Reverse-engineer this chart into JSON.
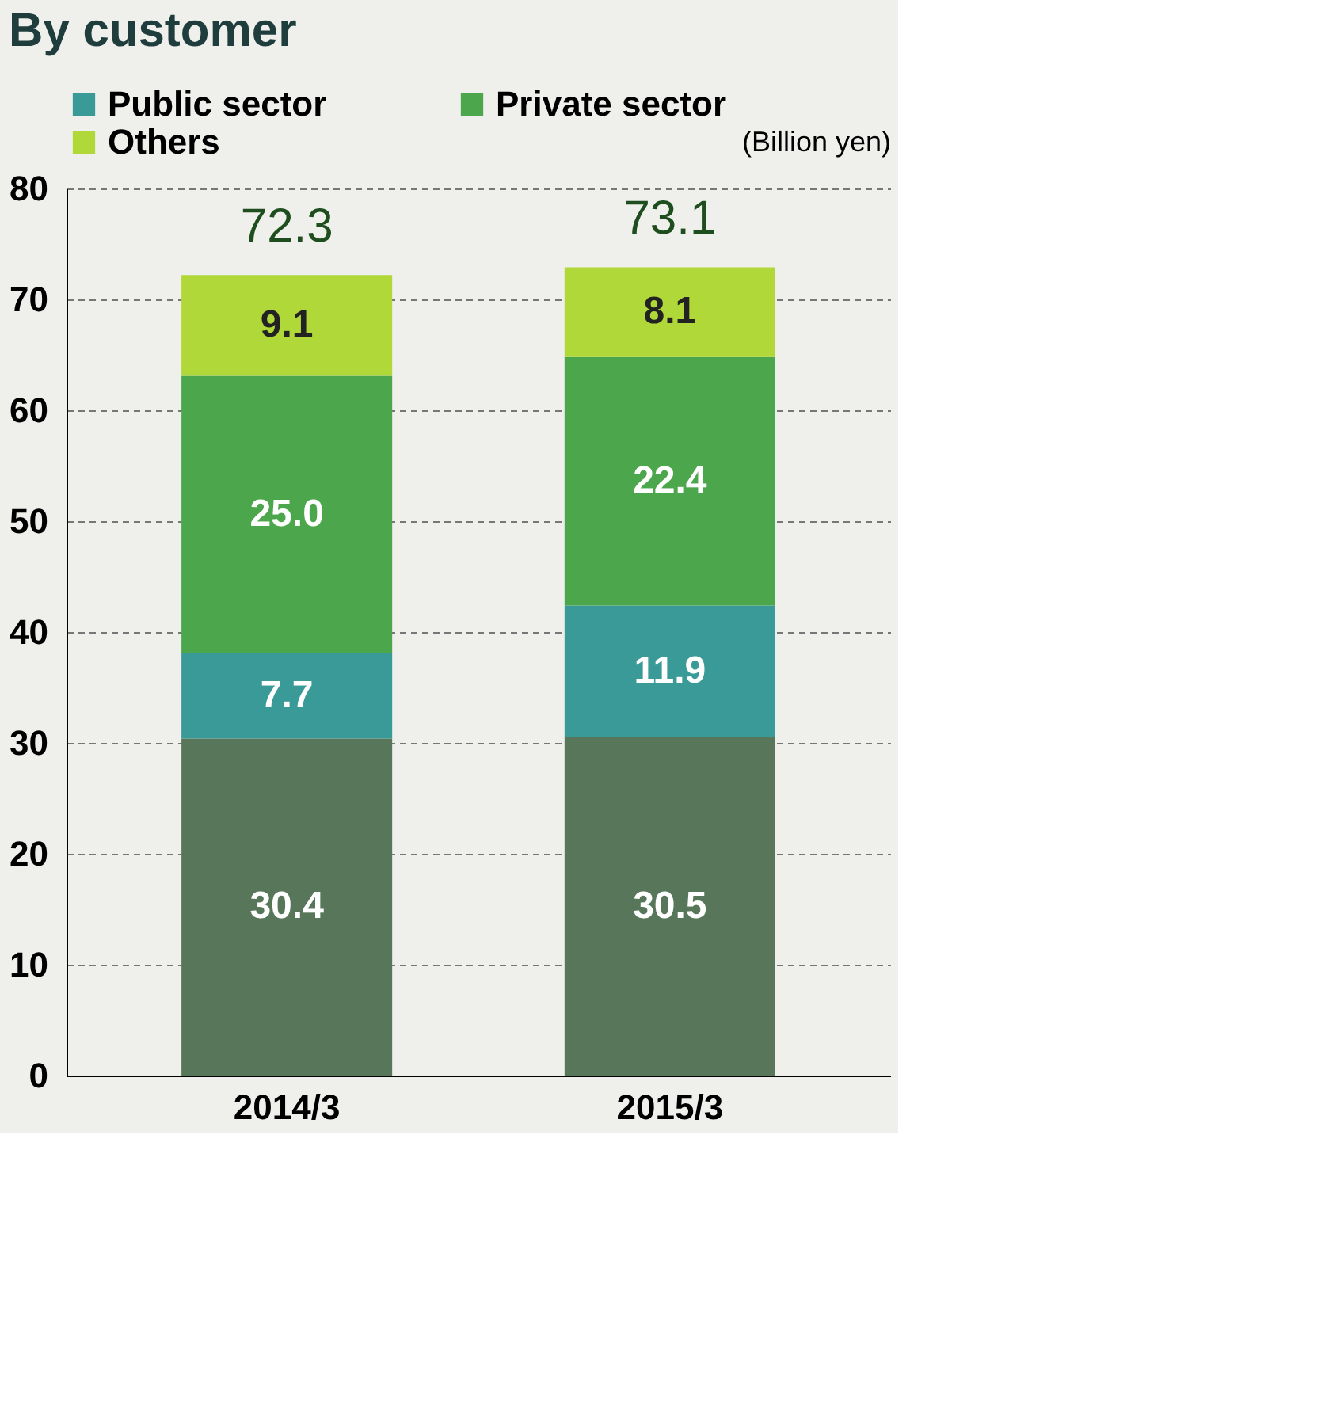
{
  "chart_data": {
    "type": "bar",
    "title": "By customer",
    "ylabel": "(Billion yen)",
    "categories": [
      "2014/3",
      "2015/3"
    ],
    "series": [
      {
        "color": "#58775a",
        "values": [
          30.4,
          30.5
        ],
        "value_labels": [
          "30.4",
          "30.5"
        ]
      },
      {
        "name": "Public sector",
        "color": "#3a9a98",
        "values": [
          7.7,
          11.9
        ],
        "value_labels": [
          "7.7",
          "11.9"
        ]
      },
      {
        "name": "Private sector",
        "color": "#4ca64c",
        "values": [
          25.0,
          22.4
        ],
        "value_labels": [
          "25.0",
          "22.4"
        ]
      },
      {
        "name": "Others",
        "color": "#b0d838",
        "values": [
          9.1,
          8.1
        ],
        "value_labels": [
          "9.1",
          "8.1"
        ]
      }
    ],
    "stacked": true,
    "totals": [
      "72.3",
      "73.1"
    ],
    "ylim": [
      0,
      80
    ],
    "yticks": [
      0,
      10,
      20,
      30,
      40,
      50,
      60,
      70,
      80
    ],
    "grid": "y",
    "legend": "top"
  }
}
